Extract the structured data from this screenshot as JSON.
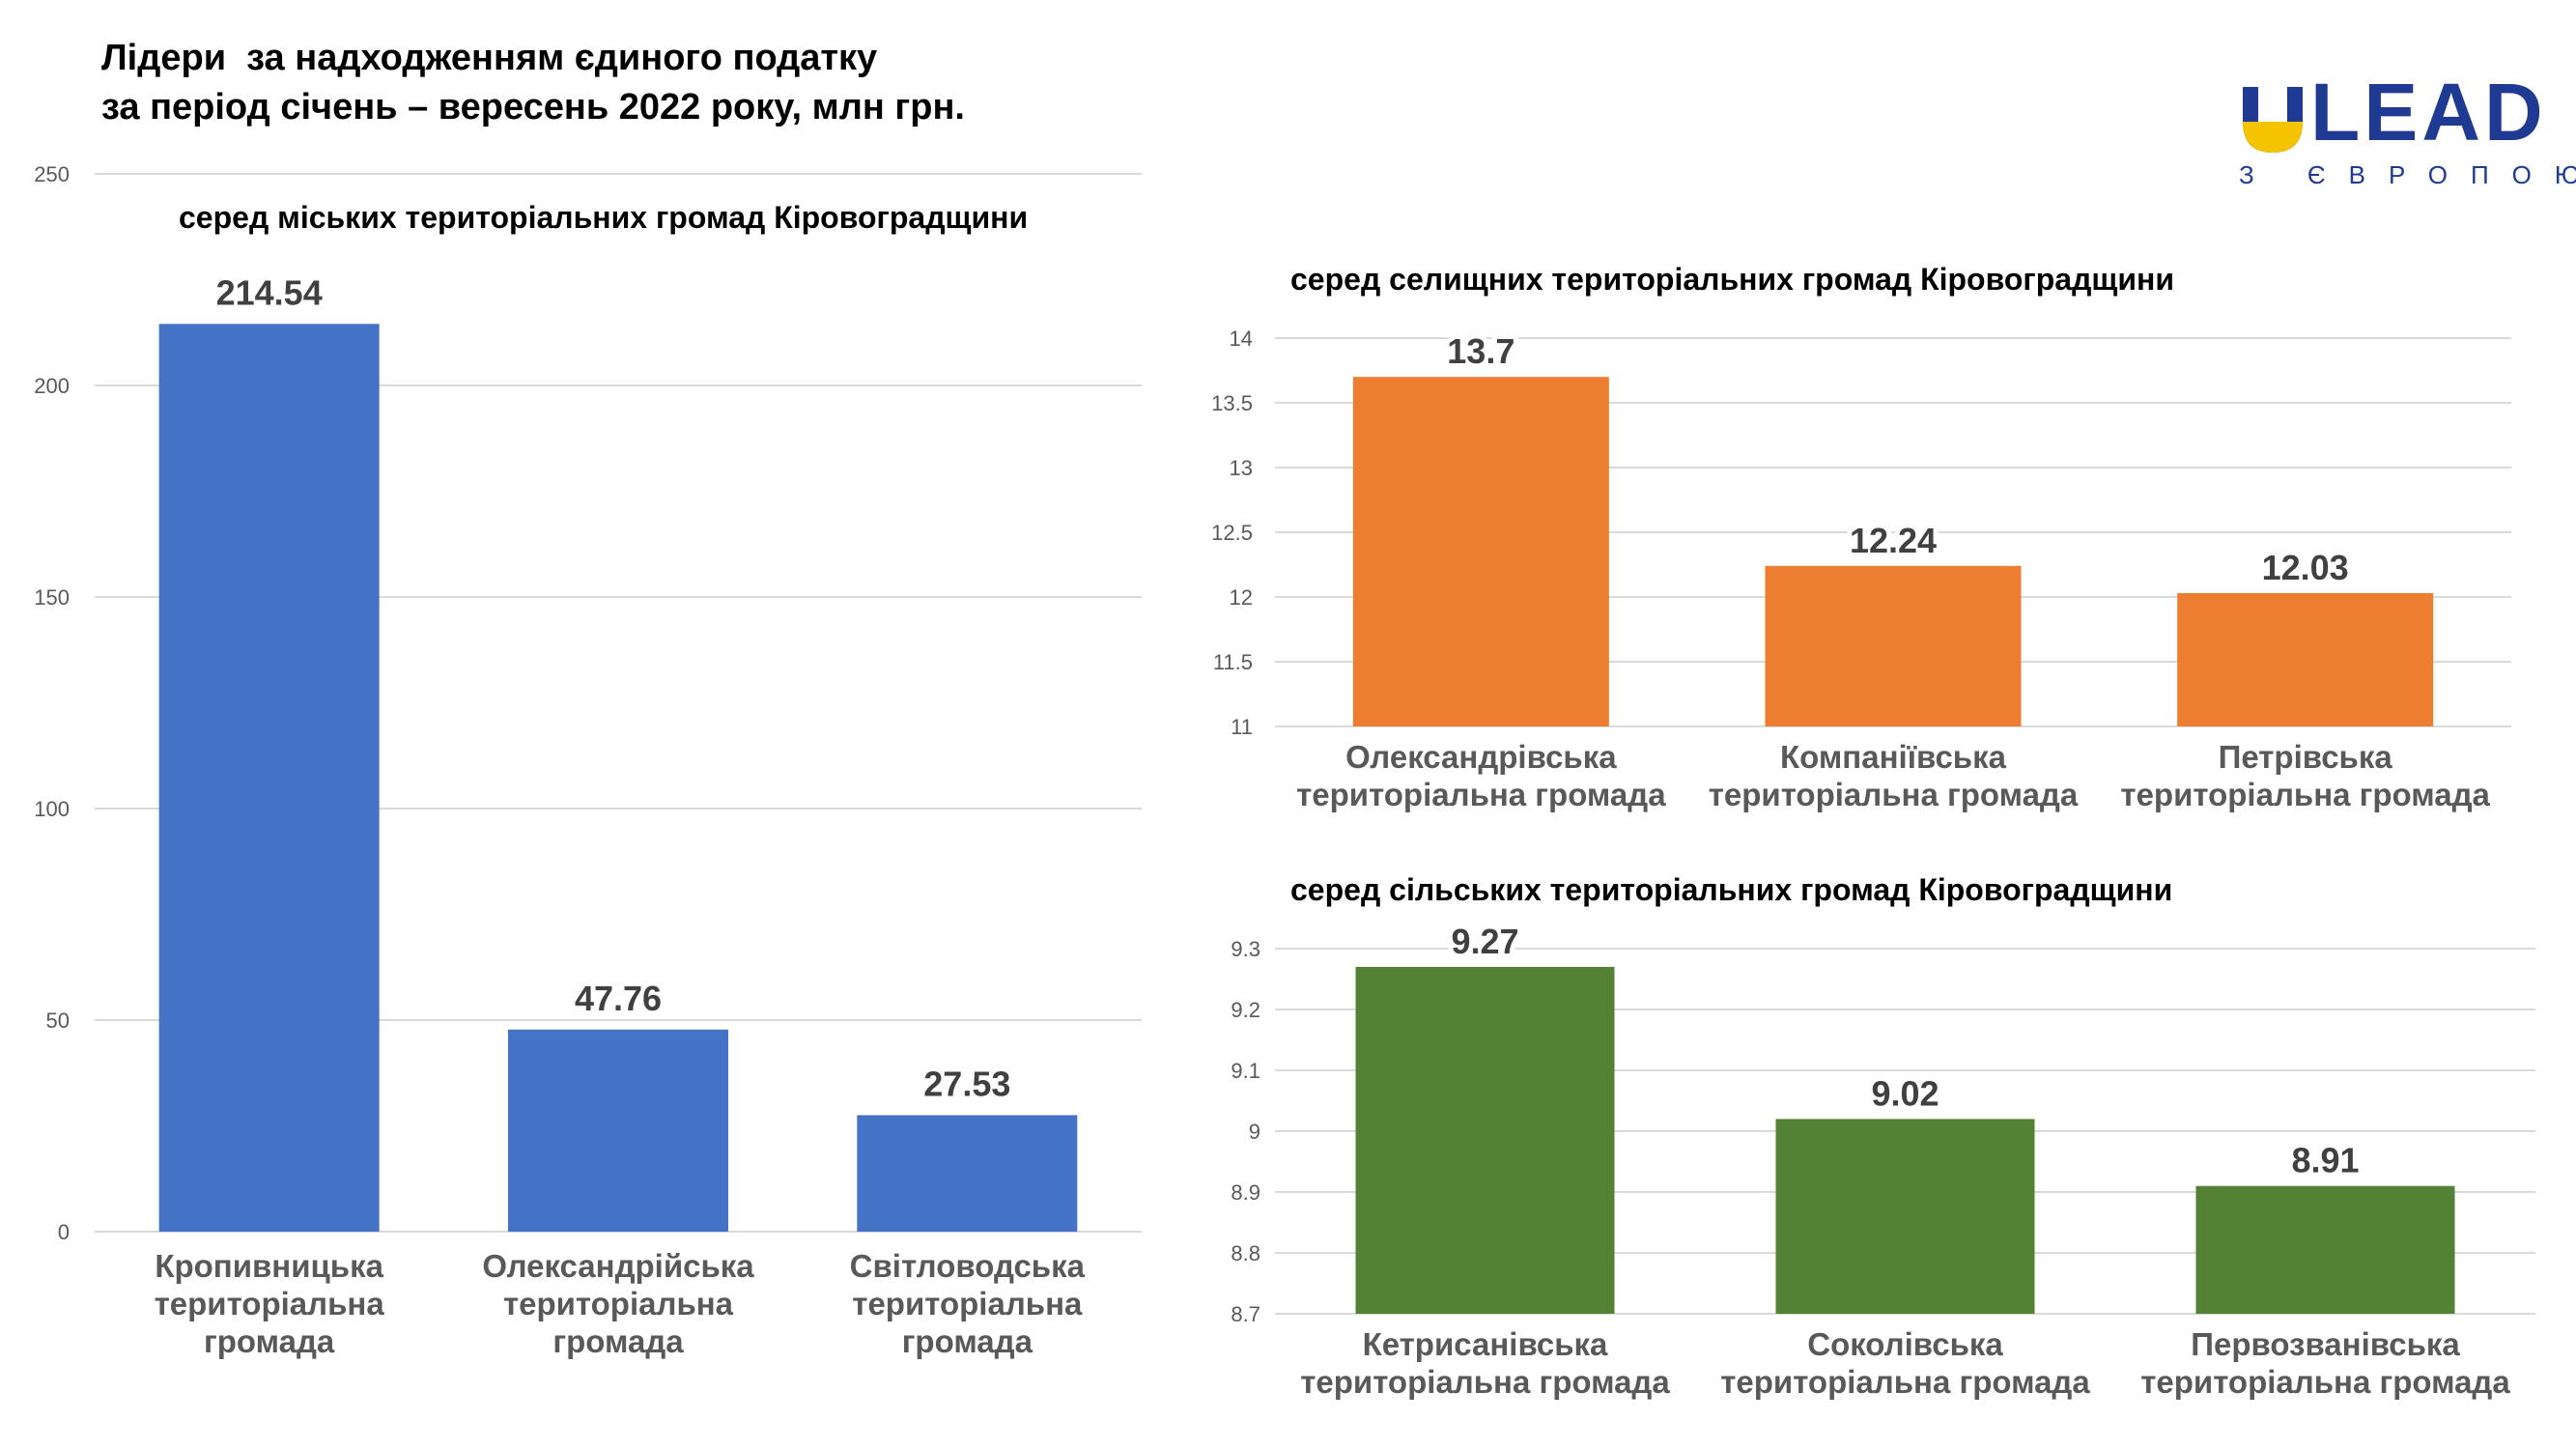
{
  "title": {
    "line1": "Лідери  за надходженням єдиного податку",
    "line2": "за період січень – вересень 2022 року, млн грн."
  },
  "logo": {
    "text": "LEAD",
    "tagline": "З ЄВРОПОЮ",
    "colors": {
      "blue": "#1f3a93",
      "yellow": "#f5c400"
    }
  },
  "chart_data": [
    {
      "type": "bar",
      "title": "серед міських територіальних громад Кіровоградщини",
      "categories": [
        [
          "Кропивницька",
          "територіальна",
          "громада"
        ],
        [
          "Олександрійська",
          "територіальна",
          "громада"
        ],
        [
          "Світловодська",
          "територіальна",
          "громада"
        ]
      ],
      "values": [
        214.54,
        47.76,
        27.53
      ],
      "value_labels": [
        "214.54",
        "47.76",
        "27.53"
      ],
      "ylim": [
        0,
        250
      ],
      "yticks": [
        0,
        50,
        100,
        150,
        200,
        250
      ],
      "ytick_labels": [
        "0",
        "50",
        "100",
        "150",
        "200",
        "250"
      ],
      "color": "#4472c4",
      "grid": true
    },
    {
      "type": "bar",
      "title": "серед селищних територіальних громад Кіровоградщини",
      "categories": [
        [
          "Олександрівська",
          "територіальна громада"
        ],
        [
          "Компаніївська",
          "територіальна громада"
        ],
        [
          "Петрівська",
          "територіальна громада"
        ]
      ],
      "values": [
        13.7,
        12.24,
        12.03
      ],
      "value_labels": [
        "13.7",
        "12.24",
        "12.03"
      ],
      "ylim": [
        11,
        14
      ],
      "yticks": [
        11,
        11.5,
        12,
        12.5,
        13,
        13.5,
        14
      ],
      "ytick_labels": [
        "11",
        "11.5",
        "12",
        "12.5",
        "13",
        "13.5",
        "14"
      ],
      "color": "#ed7d31",
      "grid": true
    },
    {
      "type": "bar",
      "title": "серед сільських територіальних громад Кіровоградщини",
      "categories": [
        [
          "Кетрисанівська",
          "територіальна громада"
        ],
        [
          "Соколівська",
          "територіальна громада"
        ],
        [
          "Первозванівська",
          "територіальна громада"
        ]
      ],
      "values": [
        9.27,
        9.02,
        8.91
      ],
      "value_labels": [
        "9.27",
        "9.02",
        "8.91"
      ],
      "ylim": [
        8.7,
        9.3
      ],
      "yticks": [
        8.7,
        8.8,
        8.9,
        9,
        9.1,
        9.2,
        9.3
      ],
      "ytick_labels": [
        "8.7",
        "8.8",
        "8.9",
        "9",
        "9.1",
        "9.2",
        "9.3"
      ],
      "color": "#548235",
      "grid": true
    }
  ]
}
